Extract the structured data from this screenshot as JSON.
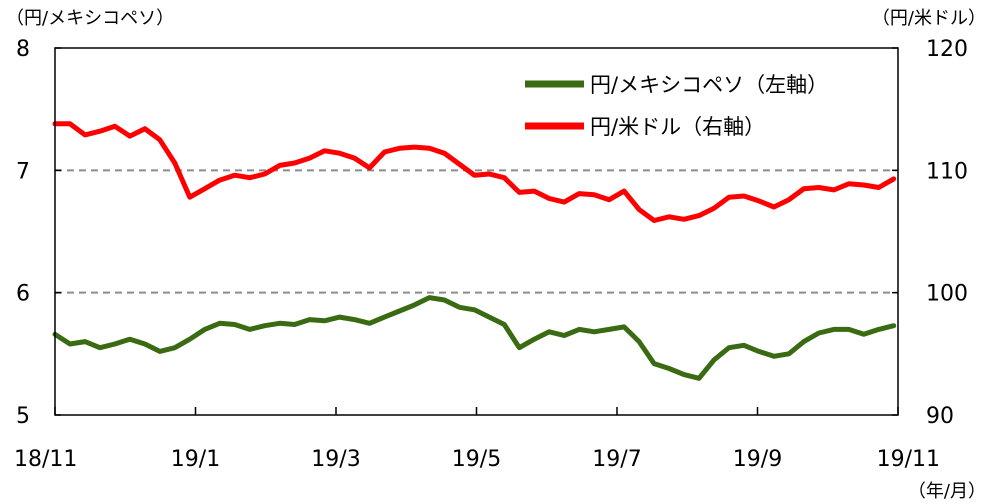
{
  "chart_data": {
    "type": "line",
    "left_unit": "（円/メキシコペソ）",
    "right_unit": "（円/米ドル）",
    "x_unit": "（年/月）",
    "x_ticks": [
      "18/11",
      "19/1",
      "19/3",
      "19/5",
      "19/7",
      "19/9",
      "19/11"
    ],
    "x_range": [
      "2018-11-01",
      "2019-11-30"
    ],
    "left_axis": {
      "ylim": [
        5,
        8
      ],
      "ticks": [
        "5",
        "6",
        "7",
        "8"
      ]
    },
    "right_axis": {
      "ylim": [
        90,
        120
      ],
      "ticks": [
        "90",
        "100",
        "110",
        "120"
      ]
    },
    "dashed_gridlines": true,
    "legend_position": "top-right",
    "series": [
      {
        "name": "円/メキシコペソ（左軸）",
        "axis": "left",
        "color": "#3a6b12",
        "points": [
          [
            "2018-11-01",
            5.66
          ],
          [
            "2018-11-08",
            5.58
          ],
          [
            "2018-11-15",
            5.6
          ],
          [
            "2018-11-22",
            5.55
          ],
          [
            "2018-11-29",
            5.58
          ],
          [
            "2018-12-06",
            5.62
          ],
          [
            "2018-12-13",
            5.58
          ],
          [
            "2018-12-20",
            5.52
          ],
          [
            "2018-12-27",
            5.55
          ],
          [
            "2019-01-03",
            5.62
          ],
          [
            "2019-01-10",
            5.7
          ],
          [
            "2019-01-17",
            5.75
          ],
          [
            "2019-01-24",
            5.74
          ],
          [
            "2019-01-31",
            5.7
          ],
          [
            "2019-02-07",
            5.73
          ],
          [
            "2019-02-14",
            5.75
          ],
          [
            "2019-02-21",
            5.74
          ],
          [
            "2019-02-28",
            5.78
          ],
          [
            "2019-03-07",
            5.77
          ],
          [
            "2019-03-14",
            5.8
          ],
          [
            "2019-03-21",
            5.78
          ],
          [
            "2019-03-28",
            5.75
          ],
          [
            "2019-04-04",
            5.8
          ],
          [
            "2019-04-11",
            5.85
          ],
          [
            "2019-04-18",
            5.9
          ],
          [
            "2019-04-25",
            5.96
          ],
          [
            "2019-05-02",
            5.94
          ],
          [
            "2019-05-09",
            5.88
          ],
          [
            "2019-05-16",
            5.86
          ],
          [
            "2019-05-23",
            5.8
          ],
          [
            "2019-05-30",
            5.74
          ],
          [
            "2019-06-06",
            5.55
          ],
          [
            "2019-06-13",
            5.62
          ],
          [
            "2019-06-20",
            5.68
          ],
          [
            "2019-06-27",
            5.65
          ],
          [
            "2019-07-04",
            5.7
          ],
          [
            "2019-07-11",
            5.68
          ],
          [
            "2019-07-18",
            5.7
          ],
          [
            "2019-07-25",
            5.72
          ],
          [
            "2019-08-01",
            5.6
          ],
          [
            "2019-08-08",
            5.42
          ],
          [
            "2019-08-15",
            5.38
          ],
          [
            "2019-08-22",
            5.33
          ],
          [
            "2019-08-29",
            5.3
          ],
          [
            "2019-09-05",
            5.45
          ],
          [
            "2019-09-12",
            5.55
          ],
          [
            "2019-09-19",
            5.57
          ],
          [
            "2019-09-26",
            5.52
          ],
          [
            "2019-10-03",
            5.48
          ],
          [
            "2019-10-10",
            5.5
          ],
          [
            "2019-10-17",
            5.6
          ],
          [
            "2019-10-24",
            5.67
          ],
          [
            "2019-10-31",
            5.7
          ],
          [
            "2019-11-07",
            5.7
          ],
          [
            "2019-11-14",
            5.66
          ],
          [
            "2019-11-21",
            5.7
          ],
          [
            "2019-11-28",
            5.73
          ]
        ]
      },
      {
        "name": "円/米ドル（右軸）",
        "axis": "right",
        "color": "#ff0000",
        "points": [
          [
            "2018-11-01",
            113.8
          ],
          [
            "2018-11-08",
            113.8
          ],
          [
            "2018-11-15",
            112.9
          ],
          [
            "2018-11-22",
            113.2
          ],
          [
            "2018-11-29",
            113.6
          ],
          [
            "2018-12-06",
            112.8
          ],
          [
            "2018-12-13",
            113.4
          ],
          [
            "2018-12-20",
            112.5
          ],
          [
            "2018-12-27",
            110.6
          ],
          [
            "2019-01-03",
            107.8
          ],
          [
            "2019-01-10",
            108.5
          ],
          [
            "2019-01-17",
            109.2
          ],
          [
            "2019-01-24",
            109.6
          ],
          [
            "2019-01-31",
            109.4
          ],
          [
            "2019-02-07",
            109.7
          ],
          [
            "2019-02-14",
            110.4
          ],
          [
            "2019-02-21",
            110.6
          ],
          [
            "2019-02-28",
            111.0
          ],
          [
            "2019-03-07",
            111.6
          ],
          [
            "2019-03-14",
            111.4
          ],
          [
            "2019-03-21",
            111.0
          ],
          [
            "2019-03-28",
            110.2
          ],
          [
            "2019-04-04",
            111.5
          ],
          [
            "2019-04-11",
            111.8
          ],
          [
            "2019-04-18",
            111.9
          ],
          [
            "2019-04-25",
            111.8
          ],
          [
            "2019-05-02",
            111.4
          ],
          [
            "2019-05-09",
            110.5
          ],
          [
            "2019-05-16",
            109.6
          ],
          [
            "2019-05-23",
            109.7
          ],
          [
            "2019-05-30",
            109.4
          ],
          [
            "2019-06-06",
            108.2
          ],
          [
            "2019-06-13",
            108.3
          ],
          [
            "2019-06-20",
            107.7
          ],
          [
            "2019-06-27",
            107.4
          ],
          [
            "2019-07-04",
            108.1
          ],
          [
            "2019-07-11",
            108.0
          ],
          [
            "2019-07-18",
            107.6
          ],
          [
            "2019-07-25",
            108.3
          ],
          [
            "2019-08-01",
            106.8
          ],
          [
            "2019-08-08",
            105.9
          ],
          [
            "2019-08-15",
            106.2
          ],
          [
            "2019-08-22",
            106.0
          ],
          [
            "2019-08-29",
            106.3
          ],
          [
            "2019-09-05",
            106.9
          ],
          [
            "2019-09-12",
            107.8
          ],
          [
            "2019-09-19",
            107.9
          ],
          [
            "2019-09-26",
            107.5
          ],
          [
            "2019-10-03",
            107.0
          ],
          [
            "2019-10-10",
            107.6
          ],
          [
            "2019-10-17",
            108.5
          ],
          [
            "2019-10-24",
            108.6
          ],
          [
            "2019-10-31",
            108.4
          ],
          [
            "2019-11-07",
            108.9
          ],
          [
            "2019-11-14",
            108.8
          ],
          [
            "2019-11-21",
            108.6
          ],
          [
            "2019-11-28",
            109.3
          ]
        ]
      }
    ]
  }
}
